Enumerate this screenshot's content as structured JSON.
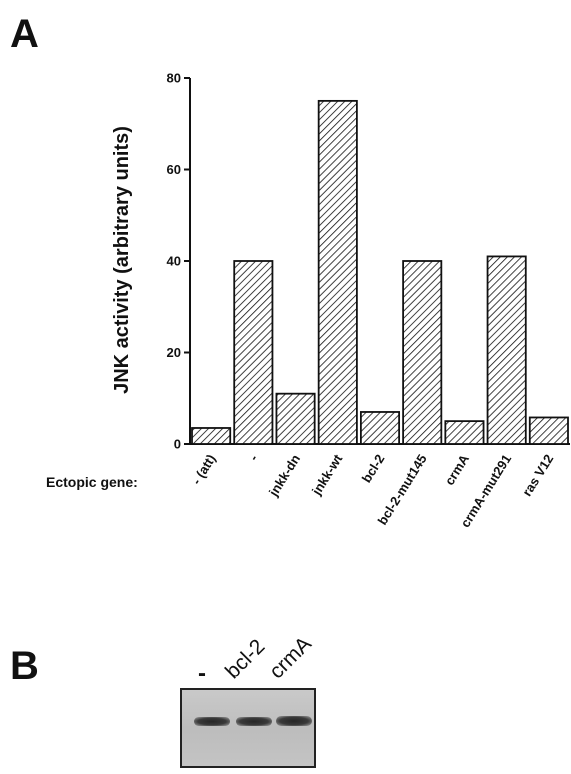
{
  "panels": {
    "a": "A",
    "b": "B"
  },
  "chart_data": {
    "type": "bar",
    "title": "",
    "ylabel": "JNK activity (arbitrary units)",
    "xlabel": "",
    "row_label": "Ectopic gene:",
    "categories": [
      "- (att)",
      "-",
      "jnkk-dn",
      "jnkk-wt",
      "bcl-2",
      "bcl-2-mut145",
      "crmA",
      "crmA-mut291",
      "ras V12"
    ],
    "values": [
      3.5,
      40,
      11,
      75,
      7,
      40,
      5,
      41,
      5.8
    ],
    "ylim": [
      0,
      80
    ],
    "yticks": [
      "0",
      "20",
      "40",
      "60",
      "80"
    ],
    "grid": false,
    "fill": "diagonal-hatch"
  },
  "blot": {
    "lanes": [
      "-",
      "bcl-2",
      "crmA"
    ]
  },
  "colors": {
    "bar_stroke": "#111111",
    "hatch": "#111111"
  }
}
